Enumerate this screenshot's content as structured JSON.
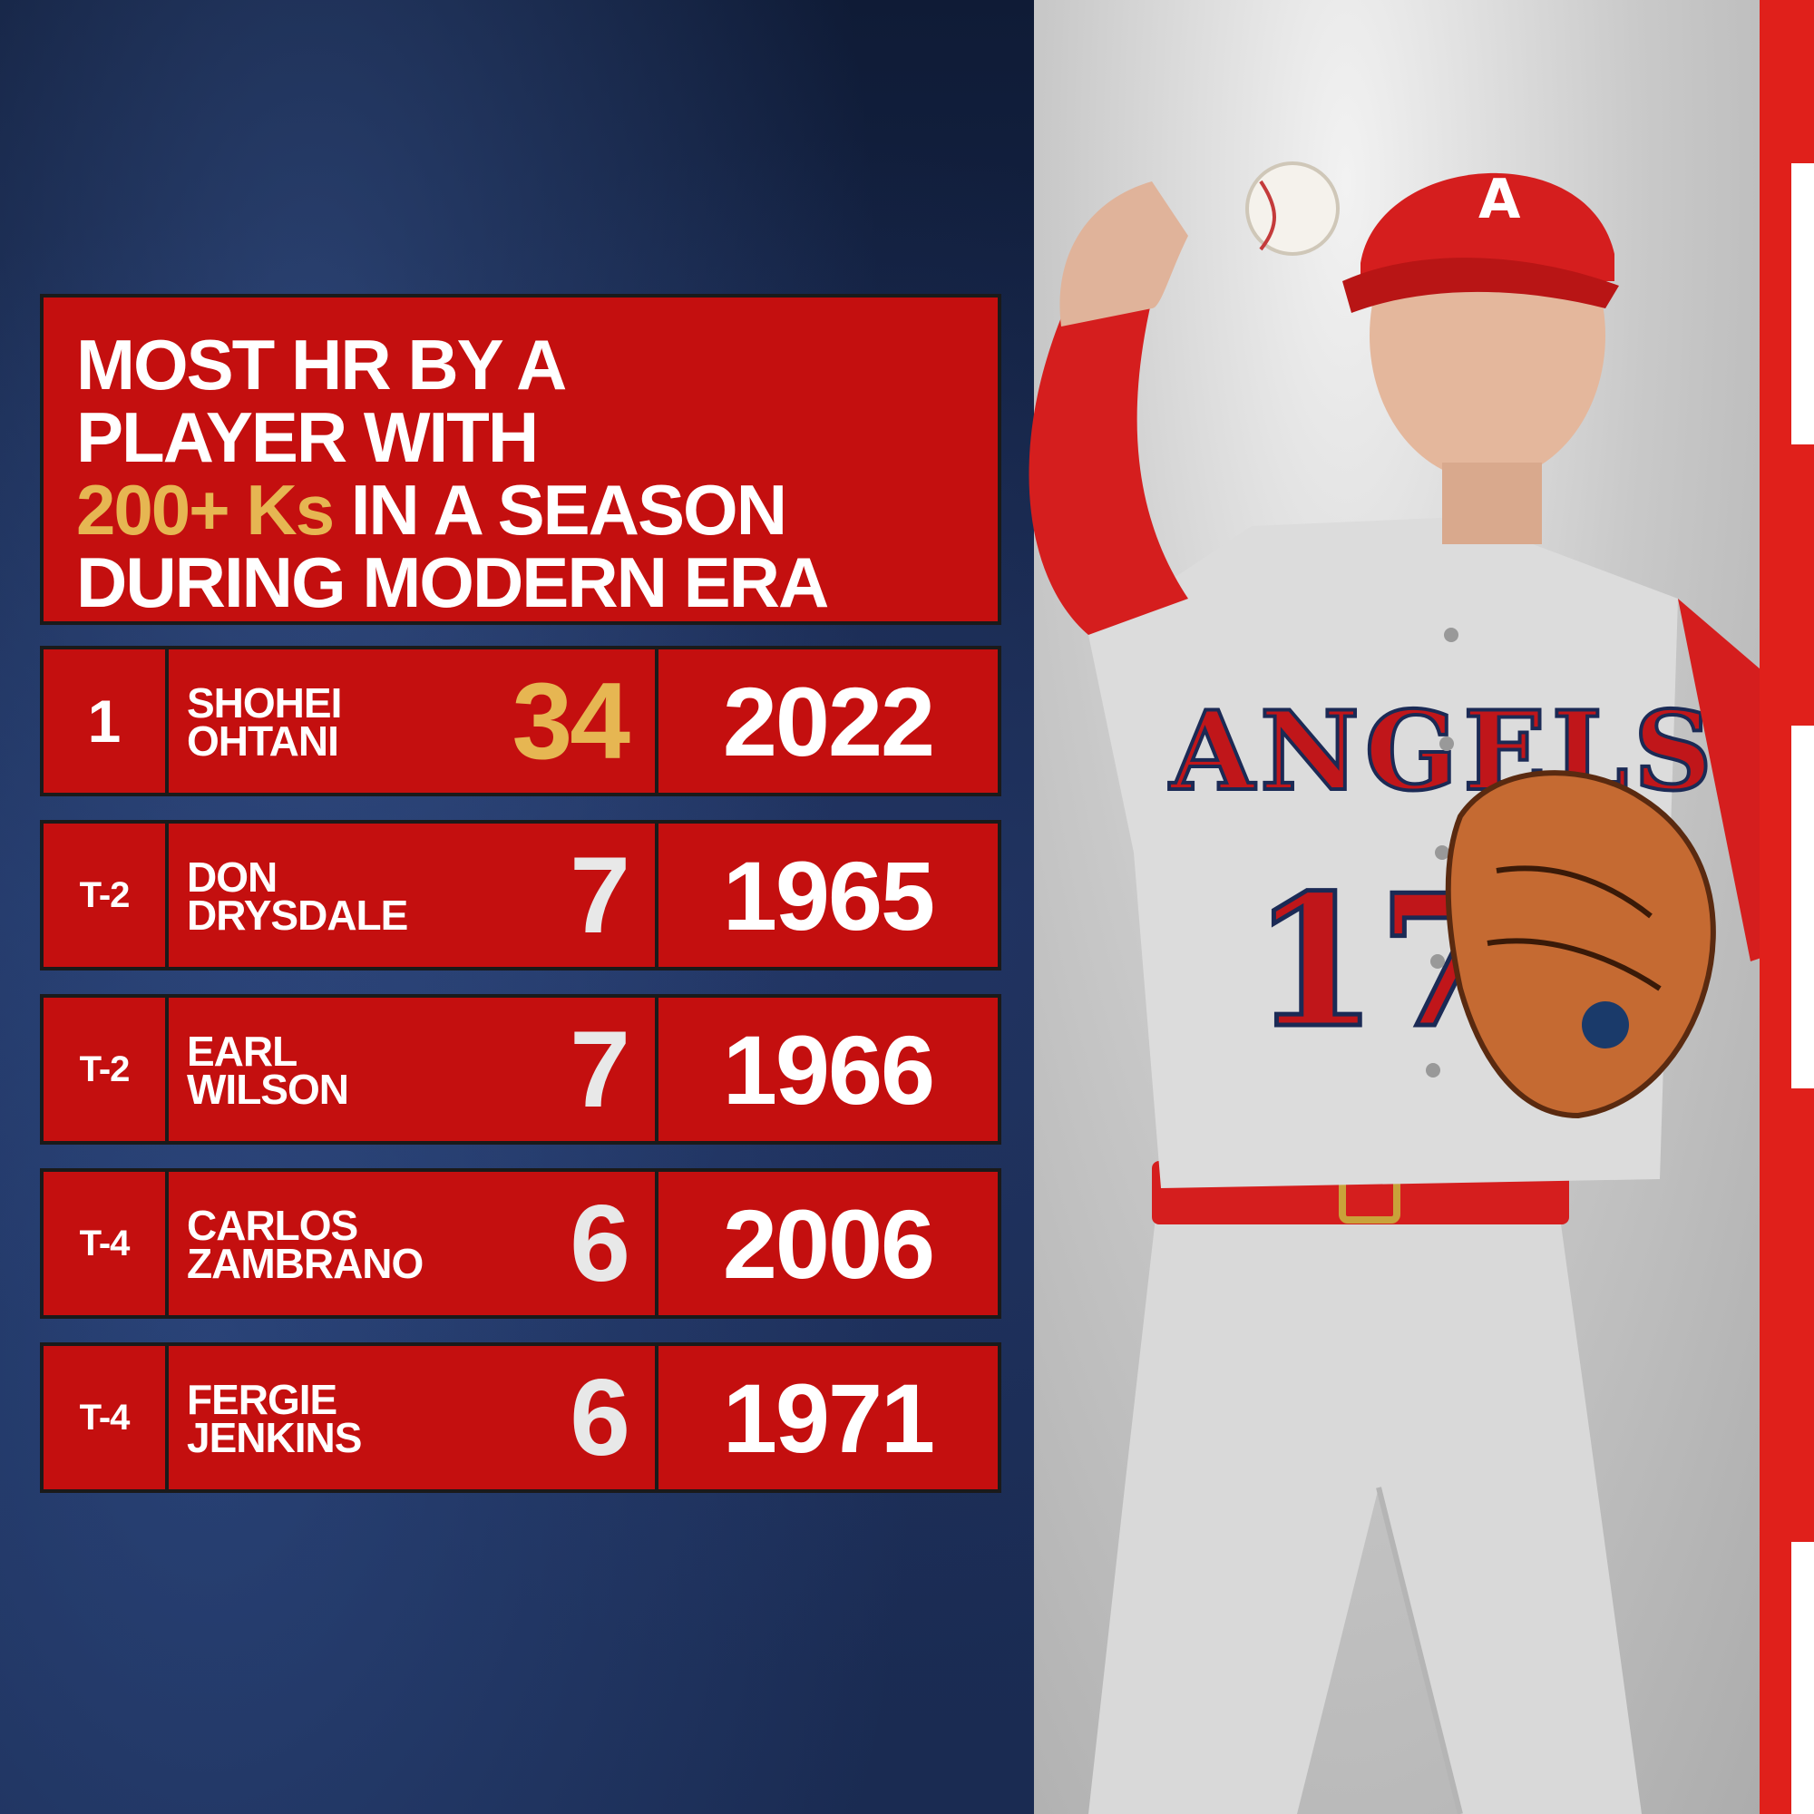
{
  "title": {
    "line1": "MOST HR BY A",
    "line2": "PLAYER WITH",
    "line3_highlight": "200+ Ks",
    "line3_rest": " IN A SEASON",
    "line4": "DURING MODERN ERA"
  },
  "rows": [
    {
      "rank": "1",
      "first": "SHOHEI",
      "last": "OHTANI",
      "hr": "34",
      "year": "2022",
      "highlight": true
    },
    {
      "rank": "T-2",
      "first": "DON",
      "last": "DRYSDALE",
      "hr": "7",
      "year": "1965",
      "highlight": false
    },
    {
      "rank": "T-2",
      "first": "EARL",
      "last": "WILSON",
      "hr": "7",
      "year": "1966",
      "highlight": false
    },
    {
      "rank": "T-4",
      "first": "CARLOS",
      "last": "ZAMBRANO",
      "hr": "6",
      "year": "2006",
      "highlight": false
    },
    {
      "rank": "T-4",
      "first": "FERGIE",
      "last": "JENKINS",
      "hr": "6",
      "year": "1971",
      "highlight": false
    }
  ],
  "jersey": {
    "team": "ANGELS",
    "number": "17"
  },
  "colors": {
    "red": "#c40f0f",
    "gold": "#e6b652",
    "navy": "#1a2b52"
  }
}
